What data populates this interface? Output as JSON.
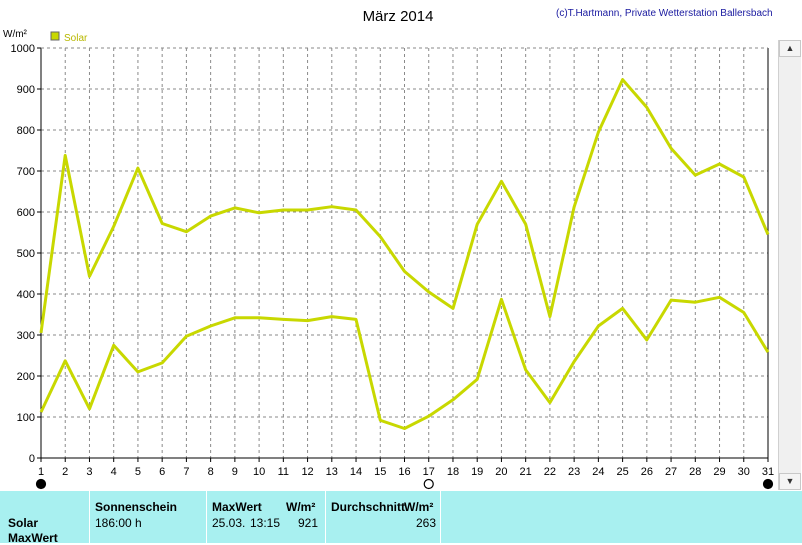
{
  "chart_data": {
    "type": "line",
    "title": "März 2014",
    "copyright": "(c)T.Hartmann, Private Wetterstation Ballersbach",
    "ylabel": "W/m²",
    "legend": {
      "label": "Solar",
      "placement": "top-left"
    },
    "ylim": [
      0,
      1000
    ],
    "yticks": [
      0,
      100,
      200,
      300,
      400,
      500,
      600,
      700,
      800,
      900,
      1000
    ],
    "x": [
      1,
      2,
      3,
      4,
      5,
      6,
      7,
      8,
      9,
      10,
      11,
      12,
      13,
      14,
      15,
      16,
      17,
      18,
      19,
      20,
      21,
      22,
      23,
      24,
      25,
      26,
      27,
      28,
      29,
      30,
      31
    ],
    "xticks": [
      "1",
      "2",
      "3",
      "4",
      "5",
      "6",
      "7",
      "8",
      "9",
      "10",
      "11",
      "12",
      "13",
      "14",
      "15",
      "16",
      "17",
      "18",
      "19",
      "20",
      "21",
      "22",
      "23",
      "24",
      "25",
      "26",
      "27",
      "28",
      "29",
      "30",
      "31"
    ],
    "grid": true,
    "series": [
      {
        "name": "Solar",
        "role": "max",
        "color": "#c8d800",
        "values": [
          305,
          738,
          443,
          565,
          707,
          572,
          552,
          590,
          610,
          598,
          605,
          605,
          613,
          605,
          540,
          455,
          405,
          365,
          570,
          675,
          570,
          345,
          612,
          795,
          923,
          855,
          755,
          690,
          717,
          685,
          545
        ]
      },
      {
        "name": "Solar",
        "role": "average",
        "color": "#c8d800",
        "values": [
          112,
          237,
          120,
          275,
          210,
          232,
          297,
          322,
          342,
          342,
          338,
          335,
          345,
          338,
          92,
          72,
          102,
          142,
          192,
          387,
          215,
          135,
          235,
          322,
          365,
          288,
          385,
          380,
          392,
          355,
          258
        ]
      }
    ],
    "moon_markers": [
      {
        "day": 1,
        "phase": "new-moon"
      },
      {
        "day": 17,
        "phase": "full-moon"
      },
      {
        "day": 31,
        "phase": "new-moon"
      }
    ]
  },
  "footer": {
    "row_labels": [
      "Solar",
      "MaxWert"
    ],
    "sunshine": {
      "header": "Sonnenschein",
      "value": "186:00 h"
    },
    "maxwert": {
      "header": "MaxWert",
      "unit": "W/m²",
      "date": "25.03.",
      "time": "13:15",
      "value": "921"
    },
    "average": {
      "header": "Durchschnitt",
      "unit": "W/m²",
      "value": "263"
    }
  }
}
